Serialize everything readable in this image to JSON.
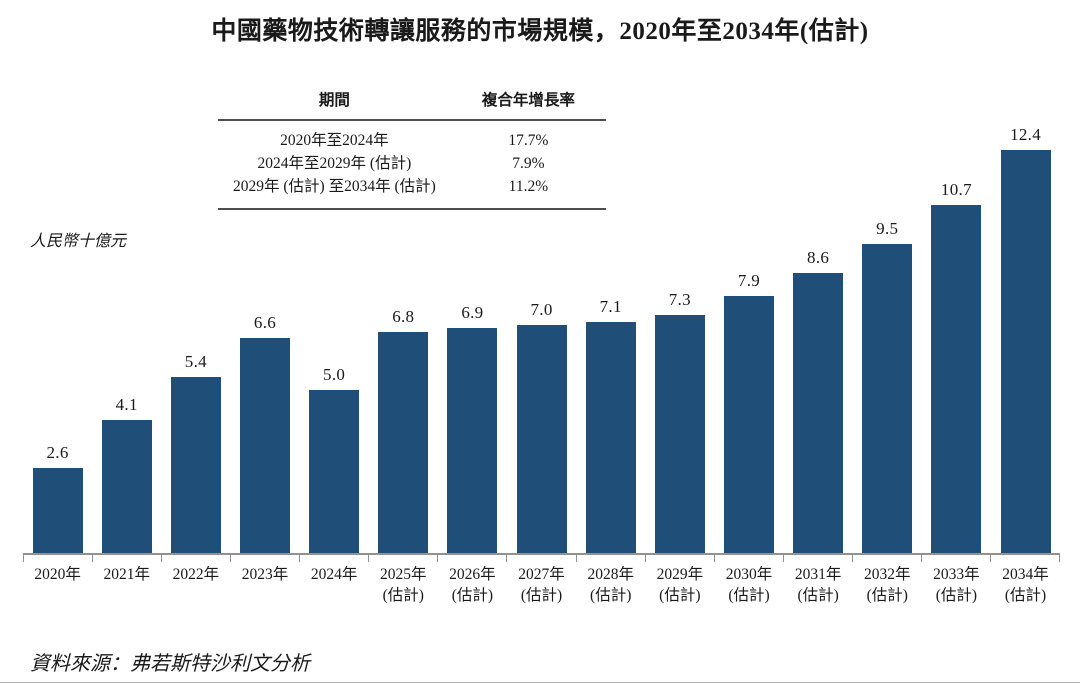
{
  "title": "中國藥物技術轉讓服務的市場規模，2020年至2034年(估計)",
  "cagr_table": {
    "period_header": "期間",
    "cagr_header": "複合年增長率",
    "rows": [
      {
        "period": "2020年至2024年",
        "cagr": "17.7%"
      },
      {
        "period": "2024年至2029年 (估計)",
        "cagr": "7.9%"
      },
      {
        "period": "2029年 (估計) 至2034年 (估計)",
        "cagr": "11.2%"
      }
    ]
  },
  "unit_label": "人民幣十億元",
  "source_note": "資料來源：弗若斯特沙利文分析",
  "colors": {
    "bar": "#1F4E79",
    "axis": "#919191",
    "table_rule": "#4d4d4d",
    "text": "#1a1a1a"
  },
  "chart_data": {
    "type": "bar",
    "title": "中國藥物技術轉讓服務的市場規模，2020年至2034年(估計)",
    "ylabel": "人民幣十億元",
    "xlabel": "",
    "ylim": [
      0,
      13
    ],
    "grid": false,
    "legend": "none",
    "bar_color": "#1F4E79",
    "categories": [
      "2020年",
      "2021年",
      "2022年",
      "2023年",
      "2024年",
      "2025年 (估計)",
      "2026年 (估計)",
      "2027年 (估計)",
      "2028年 (估計)",
      "2029年 (估計)",
      "2030年 (估計)",
      "2031年 (估計)",
      "2032年 (估計)",
      "2033年 (估計)",
      "2034年 (估計)"
    ],
    "x_labels": [
      {
        "year": "2020年",
        "note": ""
      },
      {
        "year": "2021年",
        "note": ""
      },
      {
        "year": "2022年",
        "note": ""
      },
      {
        "year": "2023年",
        "note": ""
      },
      {
        "year": "2024年",
        "note": ""
      },
      {
        "year": "2025年",
        "note": "(估計)"
      },
      {
        "year": "2026年",
        "note": "(估計)"
      },
      {
        "year": "2027年",
        "note": "(估計)"
      },
      {
        "year": "2028年",
        "note": "(估計)"
      },
      {
        "year": "2029年",
        "note": "(估計)"
      },
      {
        "year": "2030年",
        "note": "(估計)"
      },
      {
        "year": "2031年",
        "note": "(估計)"
      },
      {
        "year": "2032年",
        "note": "(估計)"
      },
      {
        "year": "2033年",
        "note": "(估計)"
      },
      {
        "year": "2034年",
        "note": "(估計)"
      }
    ],
    "values": [
      2.6,
      4.1,
      5.4,
      6.6,
      5.0,
      6.8,
      6.9,
      7.0,
      7.1,
      7.3,
      7.9,
      8.6,
      9.5,
      10.7,
      12.4
    ],
    "value_labels": [
      "2.6",
      "4.1",
      "5.4",
      "6.6",
      "5.0",
      "6.8",
      "6.9",
      "7.0",
      "7.1",
      "7.3",
      "7.9",
      "8.6",
      "9.5",
      "10.7",
      "12.4"
    ]
  }
}
